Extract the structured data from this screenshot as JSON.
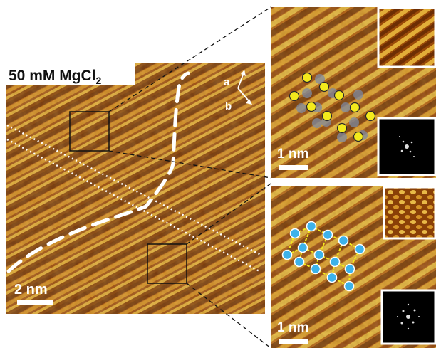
{
  "figure": {
    "condition_label": "50 mM MgCl",
    "condition_subscript": "2",
    "main_scale_label": "2 nm",
    "axis_a_label": "a",
    "axis_b_label": "b",
    "top_inset_scale_label": "1 nm",
    "bottom_inset_scale_label": "1 nm",
    "colors": {
      "stm_dark": "#6a2e05",
      "stm_mid": "#b8650c",
      "stm_light": "#e8b43a",
      "top_lattice_marker": "#f3ea1c",
      "bottom_lattice_marker": "#3db2ea",
      "bottom_lattice_bond": "#f3ea1c",
      "annotation": "#ffffff",
      "connector": "#111111"
    }
  }
}
